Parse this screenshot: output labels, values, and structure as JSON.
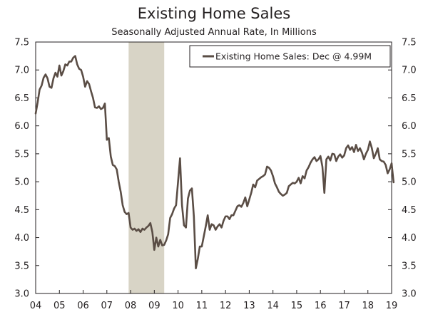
{
  "chart_data": {
    "type": "line",
    "title": "Existing Home Sales",
    "subtitle": "Seasonally Adjusted Annual Rate, In Millions",
    "xlabel": "",
    "ylabel": "",
    "ylim": [
      3.0,
      7.5
    ],
    "yticks": [
      "7.5",
      "7.0",
      "6.5",
      "6.0",
      "5.5",
      "5.0",
      "4.5",
      "4.0",
      "3.5",
      "3.0"
    ],
    "yticks_right": [
      "7.5",
      "7.0",
      "6.5",
      "6.0",
      "5.5",
      "5.0",
      "4.5",
      "4.0",
      "3.5",
      "3.0"
    ],
    "xticks": [
      "04",
      "05",
      "06",
      "07",
      "08",
      "09",
      "10",
      "11",
      "12",
      "13",
      "14",
      "15",
      "16",
      "17",
      "18",
      "19"
    ],
    "legend": "Existing Home Sales: Dec @ 4.99M",
    "legend_position": "top-right",
    "grid": false,
    "colors": {
      "line": "#5a4d45",
      "recession": "#d8d4c6",
      "axis": "#231f20"
    },
    "recession_shading": {
      "start": 2007.917,
      "end": 2009.417
    },
    "series": [
      {
        "name": "Existing Home Sales",
        "start": 2004.0,
        "step": 0.0833333,
        "values": [
          6.22,
          6.42,
          6.65,
          6.72,
          6.86,
          6.92,
          6.85,
          6.7,
          6.68,
          6.85,
          6.95,
          6.88,
          7.08,
          6.9,
          6.98,
          7.1,
          7.08,
          7.15,
          7.15,
          7.22,
          7.25,
          7.1,
          7.02,
          7.0,
          6.88,
          6.7,
          6.8,
          6.75,
          6.62,
          6.5,
          6.33,
          6.32,
          6.35,
          6.3,
          6.32,
          6.4,
          5.75,
          5.78,
          5.45,
          5.3,
          5.28,
          5.22,
          5.0,
          4.82,
          4.58,
          4.46,
          4.42,
          4.44,
          4.18,
          4.14,
          4.16,
          4.12,
          4.15,
          4.1,
          4.16,
          4.14,
          4.18,
          4.21,
          4.26,
          4.1,
          3.78,
          4.0,
          3.84,
          3.96,
          3.86,
          3.87,
          3.95,
          4.06,
          4.35,
          4.42,
          4.52,
          4.58,
          5.0,
          5.42,
          4.58,
          4.22,
          4.18,
          4.7,
          4.84,
          4.88,
          4.38,
          3.45,
          3.62,
          3.84,
          3.84,
          4.02,
          4.2,
          4.4,
          4.14,
          4.24,
          4.22,
          4.14,
          4.2,
          4.24,
          4.18,
          4.3,
          4.38,
          4.38,
          4.33,
          4.4,
          4.4,
          4.48,
          4.56,
          4.58,
          4.55,
          4.62,
          4.72,
          4.56,
          4.68,
          4.8,
          4.95,
          4.9,
          5.02,
          5.05,
          5.08,
          5.1,
          5.13,
          5.27,
          5.25,
          5.2,
          5.1,
          4.97,
          4.9,
          4.82,
          4.78,
          4.75,
          4.77,
          4.8,
          4.92,
          4.95,
          4.98,
          4.97,
          5.0,
          5.07,
          4.97,
          5.1,
          5.06,
          5.2,
          5.26,
          5.34,
          5.4,
          5.44,
          5.37,
          5.4,
          5.46,
          5.27,
          4.8,
          5.4,
          5.45,
          5.38,
          5.5,
          5.49,
          5.37,
          5.45,
          5.49,
          5.43,
          5.47,
          5.6,
          5.65,
          5.57,
          5.62,
          5.53,
          5.66,
          5.55,
          5.6,
          5.52,
          5.4,
          5.5,
          5.57,
          5.72,
          5.6,
          5.42,
          5.5,
          5.6,
          5.4,
          5.37,
          5.36,
          5.3,
          5.15,
          5.22,
          5.33,
          4.99
        ]
      }
    ]
  }
}
